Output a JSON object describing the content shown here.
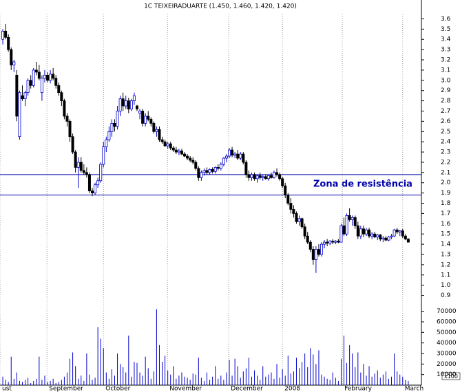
{
  "chart_data": {
    "type": "candlestick",
    "title": "1C TEIXEIRADUARTE (1.450, 1.460, 1.420, 1.420)",
    "ohlc": [
      [
        3.4,
        3.5,
        3.35,
        3.48
      ],
      [
        3.48,
        3.55,
        3.4,
        3.42
      ],
      [
        3.42,
        3.45,
        3.28,
        3.3
      ],
      [
        3.3,
        3.32,
        3.1,
        3.15
      ],
      [
        3.15,
        3.2,
        3.08,
        3.18
      ],
      [
        3.05,
        3.1,
        2.6,
        2.65
      ],
      [
        2.45,
        2.9,
        2.42,
        2.88
      ],
      [
        2.85,
        2.95,
        2.8,
        2.82
      ],
      [
        2.82,
        2.9,
        2.75,
        2.88
      ],
      [
        2.88,
        3.02,
        2.85,
        3.0
      ],
      [
        3.0,
        3.05,
        2.92,
        2.95
      ],
      [
        2.95,
        3.12,
        2.93,
        3.1
      ],
      [
        3.1,
        3.18,
        3.05,
        3.08
      ],
      [
        3.08,
        3.15,
        3.0,
        3.02
      ],
      [
        2.88,
        3.05,
        2.8,
        3.02
      ],
      [
        3.02,
        3.1,
        2.98,
        3.05
      ],
      [
        3.05,
        3.08,
        2.98,
        3.0
      ],
      [
        3.0,
        3.1,
        2.97,
        3.06
      ],
      [
        3.06,
        3.12,
        3.0,
        3.02
      ],
      [
        3.02,
        3.05,
        2.92,
        2.95
      ],
      [
        2.95,
        2.98,
        2.85,
        2.88
      ],
      [
        2.88,
        2.9,
        2.75,
        2.8
      ],
      [
        2.8,
        2.82,
        2.62,
        2.65
      ],
      [
        2.65,
        2.68,
        2.55,
        2.6
      ],
      [
        2.6,
        2.62,
        2.4,
        2.45
      ],
      [
        2.45,
        2.48,
        2.28,
        2.3
      ],
      [
        2.3,
        2.32,
        2.1,
        2.15
      ],
      [
        2.15,
        2.25,
        1.95,
        2.2
      ],
      [
        2.2,
        2.25,
        2.1,
        2.12
      ],
      [
        2.12,
        2.18,
        2.08,
        2.1
      ],
      [
        2.1,
        2.15,
        2.05,
        2.08
      ],
      [
        2.08,
        2.1,
        1.9,
        1.92
      ],
      [
        1.92,
        1.95,
        1.87,
        1.9
      ],
      [
        1.9,
        2.0,
        1.88,
        1.98
      ],
      [
        1.98,
        2.05,
        1.95,
        2.02
      ],
      [
        2.02,
        2.2,
        2.0,
        2.18
      ],
      [
        2.18,
        2.4,
        2.15,
        2.35
      ],
      [
        2.35,
        2.45,
        2.3,
        2.42
      ],
      [
        2.42,
        2.55,
        2.4,
        2.5
      ],
      [
        2.5,
        2.62,
        2.45,
        2.58
      ],
      [
        2.58,
        2.62,
        2.5,
        2.55
      ],
      [
        2.55,
        2.75,
        2.52,
        2.7
      ],
      [
        2.7,
        2.85,
        2.65,
        2.82
      ],
      [
        2.82,
        2.88,
        2.7,
        2.75
      ],
      [
        2.75,
        2.85,
        2.72,
        2.8
      ],
      [
        2.8,
        2.83,
        2.68,
        2.72
      ],
      [
        2.72,
        2.82,
        2.7,
        2.8
      ],
      [
        2.8,
        2.88,
        2.76,
        2.85
      ],
      [
        2.75,
        2.76,
        2.7,
        2.72
      ],
      [
        2.68,
        2.72,
        2.62,
        2.7
      ],
      [
        2.7,
        2.72,
        2.55,
        2.58
      ],
      [
        2.58,
        2.68,
        2.55,
        2.65
      ],
      [
        2.65,
        2.7,
        2.6,
        2.62
      ],
      [
        2.62,
        2.64,
        2.55,
        2.58
      ],
      [
        2.58,
        2.6,
        2.48,
        2.5
      ],
      [
        2.5,
        2.55,
        2.45,
        2.52
      ],
      [
        2.52,
        2.55,
        2.4,
        2.42
      ],
      [
        2.42,
        2.45,
        2.38,
        2.4
      ],
      [
        2.4,
        2.42,
        2.35,
        2.36
      ],
      [
        2.36,
        2.4,
        2.33,
        2.38
      ],
      [
        2.38,
        2.4,
        2.32,
        2.34
      ],
      [
        2.34,
        2.36,
        2.3,
        2.32
      ],
      [
        2.32,
        2.35,
        2.28,
        2.3
      ],
      [
        2.3,
        2.33,
        2.27,
        2.31
      ],
      [
        2.31,
        2.33,
        2.27,
        2.28
      ],
      [
        2.28,
        2.3,
        2.25,
        2.26
      ],
      [
        2.26,
        2.28,
        2.22,
        2.24
      ],
      [
        2.24,
        2.26,
        2.2,
        2.22
      ],
      [
        2.22,
        2.25,
        2.18,
        2.2
      ],
      [
        2.2,
        2.22,
        2.12,
        2.14
      ],
      [
        2.14,
        2.16,
        2.02,
        2.05
      ],
      [
        2.05,
        2.12,
        2.02,
        2.1
      ],
      [
        2.1,
        2.14,
        2.07,
        2.12
      ],
      [
        2.12,
        2.15,
        2.08,
        2.1
      ],
      [
        2.1,
        2.14,
        2.08,
        2.13
      ],
      [
        2.13,
        2.15,
        2.09,
        2.11
      ],
      [
        2.11,
        2.16,
        2.09,
        2.15
      ],
      [
        2.15,
        2.18,
        2.12,
        2.14
      ],
      [
        2.14,
        2.2,
        2.12,
        2.18
      ],
      [
        2.18,
        2.25,
        2.16,
        2.24
      ],
      [
        2.24,
        2.28,
        2.2,
        2.26
      ],
      [
        2.26,
        2.34,
        2.24,
        2.32
      ],
      [
        2.32,
        2.35,
        2.25,
        2.27
      ],
      [
        2.27,
        2.3,
        2.24,
        2.28
      ],
      [
        2.28,
        2.32,
        2.22,
        2.24
      ],
      [
        2.24,
        2.3,
        2.22,
        2.28
      ],
      [
        2.28,
        2.3,
        2.18,
        2.2
      ],
      [
        2.2,
        2.22,
        2.05,
        2.08
      ],
      [
        2.08,
        2.12,
        2.02,
        2.05
      ],
      [
        2.05,
        2.1,
        2.02,
        2.08
      ],
      [
        2.08,
        2.1,
        2.02,
        2.04
      ],
      [
        2.04,
        2.08,
        2.0,
        2.07
      ],
      [
        2.07,
        2.1,
        2.03,
        2.05
      ],
      [
        2.05,
        2.08,
        2.02,
        2.06
      ],
      [
        2.06,
        2.08,
        2.03,
        2.04
      ],
      [
        2.04,
        2.08,
        2.02,
        2.07
      ],
      [
        2.07,
        2.1,
        2.04,
        2.05
      ],
      [
        2.05,
        2.12,
        2.04,
        2.1
      ],
      [
        2.1,
        2.14,
        2.06,
        2.08
      ],
      [
        2.08,
        2.1,
        2.02,
        2.04
      ],
      [
        2.04,
        2.06,
        1.95,
        1.97
      ],
      [
        1.97,
        2.0,
        1.85,
        1.88
      ],
      [
        1.88,
        1.9,
        1.78,
        1.8
      ],
      [
        1.8,
        1.85,
        1.7,
        1.74
      ],
      [
        1.74,
        1.78,
        1.66,
        1.7
      ],
      [
        1.7,
        1.72,
        1.6,
        1.62
      ],
      [
        1.62,
        1.68,
        1.58,
        1.65
      ],
      [
        1.65,
        1.66,
        1.55,
        1.57
      ],
      [
        1.57,
        1.6,
        1.45,
        1.48
      ],
      [
        1.48,
        1.52,
        1.4,
        1.42
      ],
      [
        1.42,
        1.44,
        1.32,
        1.35
      ],
      [
        1.35,
        1.38,
        1.2,
        1.25
      ],
      [
        1.25,
        1.38,
        1.12,
        1.35
      ],
      [
        1.35,
        1.4,
        1.28,
        1.3
      ],
      [
        1.3,
        1.42,
        1.28,
        1.4
      ],
      [
        1.4,
        1.44,
        1.36,
        1.42
      ],
      [
        1.42,
        1.45,
        1.38,
        1.41
      ],
      [
        1.41,
        1.44,
        1.39,
        1.43
      ],
      [
        1.43,
        1.45,
        1.4,
        1.42
      ],
      [
        1.42,
        1.44,
        1.4,
        1.43
      ],
      [
        1.43,
        1.45,
        1.41,
        1.42
      ],
      [
        1.42,
        1.6,
        1.42,
        1.58
      ],
      [
        1.58,
        1.66,
        1.48,
        1.5
      ],
      [
        1.5,
        1.7,
        1.48,
        1.68
      ],
      [
        1.68,
        1.75,
        1.62,
        1.64
      ],
      [
        1.64,
        1.68,
        1.58,
        1.66
      ],
      [
        1.66,
        1.68,
        1.55,
        1.58
      ],
      [
        1.58,
        1.62,
        1.45,
        1.48
      ],
      [
        1.48,
        1.58,
        1.45,
        1.55
      ],
      [
        1.55,
        1.58,
        1.47,
        1.5
      ],
      [
        1.5,
        1.56,
        1.48,
        1.54
      ],
      [
        1.54,
        1.56,
        1.46,
        1.48
      ],
      [
        1.48,
        1.52,
        1.45,
        1.5
      ],
      [
        1.5,
        1.52,
        1.46,
        1.47
      ],
      [
        1.47,
        1.5,
        1.44,
        1.49
      ],
      [
        1.49,
        1.5,
        1.43,
        1.45
      ],
      [
        1.45,
        1.48,
        1.42,
        1.46
      ],
      [
        1.46,
        1.48,
        1.43,
        1.44
      ],
      [
        1.44,
        1.48,
        1.43,
        1.47
      ],
      [
        1.47,
        1.5,
        1.45,
        1.48
      ],
      [
        1.48,
        1.55,
        1.47,
        1.54
      ],
      [
        1.54,
        1.56,
        1.5,
        1.52
      ],
      [
        1.52,
        1.54,
        1.48,
        1.53
      ],
      [
        1.53,
        1.55,
        1.46,
        1.48
      ],
      [
        1.48,
        1.5,
        1.44,
        1.45
      ],
      [
        1.45,
        1.46,
        1.42,
        1.42
      ]
    ],
    "volume": [
      8000,
      5000,
      3000,
      27000,
      6000,
      12000,
      4000,
      3000,
      5000,
      7000,
      2000,
      4000,
      6000,
      27000,
      5000,
      9000,
      3000,
      4000,
      6000,
      2000,
      3000,
      5000,
      8000,
      12000,
      25000,
      31000,
      18000,
      6000,
      9000,
      4000,
      30000,
      10000,
      5000,
      7000,
      55000,
      44000,
      35000,
      12000,
      6000,
      15000,
      9000,
      30000,
      20000,
      17000,
      12000,
      47000,
      8000,
      22000,
      21000,
      12000,
      9000,
      27000,
      16000,
      6000,
      13000,
      72000,
      38000,
      22000,
      28000,
      14000,
      10000,
      18000,
      6000,
      9000,
      12000,
      8000,
      7000,
      5000,
      11000,
      10000,
      26000,
      7000,
      4000,
      12000,
      5000,
      8000,
      18000,
      6000,
      9000,
      5000,
      12000,
      24000,
      9000,
      25000,
      18000,
      7000,
      13000,
      16000,
      26000,
      8000,
      14000,
      9000,
      5000,
      18000,
      8000,
      10000,
      12000,
      6000,
      20000,
      7000,
      15000,
      9000,
      28000,
      11000,
      13000,
      26000,
      16000,
      22000,
      30000,
      17000,
      35000,
      29000,
      20000,
      33000,
      10000,
      8000,
      6000,
      5000,
      12000,
      7000,
      4000,
      25000,
      47000,
      21000,
      38000,
      30000,
      17000,
      31000,
      12000,
      20000,
      9000,
      18000,
      8000,
      11000,
      14000,
      7000,
      10000,
      13000,
      6000,
      8000,
      30000,
      13000,
      10000,
      8000,
      5000,
      4000
    ],
    "up_color": "#0000cc",
    "down_color": "#000000",
    "volume_color": "#0000cc",
    "ylim": [
      0.83,
      3.65
    ],
    "yticks": [
      0.9,
      {
        "value": 1,
        "label": "1.0"
      },
      1.1,
      1.2,
      1.3,
      1.4,
      1.5,
      1.6,
      1.7,
      1.8,
      1.9,
      {
        "value": 2,
        "label": "2.0"
      },
      2.1,
      2.2,
      2.3,
      2.4,
      2.5,
      2.6,
      2.7,
      2.8,
      2.9,
      {
        "value": 3,
        "label": "3.0"
      },
      3.1,
      3.2,
      3.3,
      3.4,
      3.5,
      3.6
    ],
    "volume_ylim": [
      0,
      75000
    ],
    "volume_yticks": [
      10000,
      20000,
      30000,
      40000,
      50000,
      60000,
      70000
    ],
    "volume_unit_label": "x100",
    "xlim": [
      -1,
      149.7
    ],
    "xticks": [
      {
        "value": -1,
        "label": "ust"
      },
      {
        "value": 15.8,
        "label": "September"
      },
      {
        "value": 36,
        "label": "October"
      },
      {
        "value": 58.9,
        "label": "November"
      },
      {
        "value": 80.8,
        "label": "December"
      },
      {
        "value": 100,
        "label": "2008"
      },
      {
        "value": 121.4,
        "label": "February"
      },
      {
        "value": 143,
        "label": "March"
      }
    ],
    "reference_lines": [
      2.08,
      1.88
    ],
    "reference_color": "#0000aa",
    "annotation": "Zona de resistência"
  }
}
